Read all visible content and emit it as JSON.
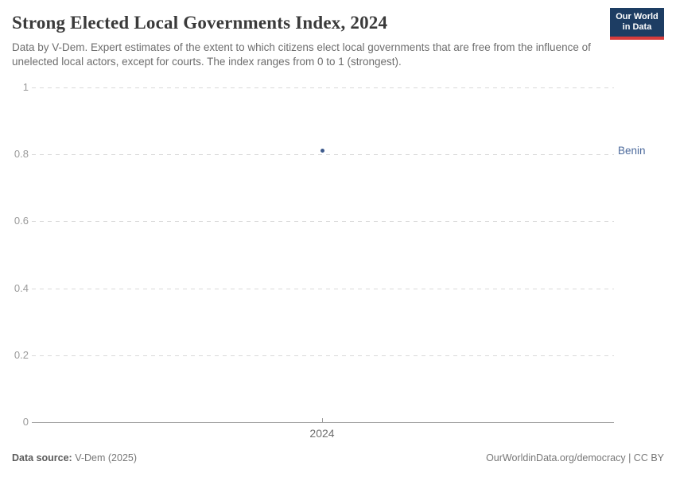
{
  "header": {
    "title": "Strong Elected Local Governments Index, 2024",
    "subtitle": "Data by V-Dem. Expert estimates of the extent to which citizens elect local governments that are free from the influence of unelected local actors, except for courts. The index ranges from 0 to 1 (strongest).",
    "logo": {
      "line1": "Our World",
      "line2": "in Data"
    }
  },
  "chart_data": {
    "type": "scatter",
    "title": "Strong Elected Local Governments Index, 2024",
    "x": [
      2024
    ],
    "x_tick_labels": [
      "2024"
    ],
    "series": [
      {
        "name": "Benin",
        "values": [
          0.81
        ]
      }
    ],
    "xlabel": "",
    "ylabel": "",
    "ylim": [
      0,
      1
    ],
    "y_ticks": [
      0,
      0.2,
      0.4,
      0.6,
      0.8,
      1
    ],
    "y_tick_labels": [
      "0",
      "0.2",
      "0.4",
      "0.6",
      "0.8",
      "1"
    ],
    "grid": "horizontal dashed, solid baseline at 0",
    "legend_position": "right edge entity label"
  },
  "colors": {
    "point": "#3d5a8c",
    "entity_label": "#4c6a9c",
    "logo_bg": "#1d3d63",
    "logo_stripe": "#d73c3c",
    "gridline": "#d9d9d9",
    "axis": "#a3a3a3"
  },
  "footer": {
    "source_label": "Data source:",
    "source_value": "V-Dem (2025)",
    "credit": "OurWorldinData.org/democracy | CC BY"
  }
}
